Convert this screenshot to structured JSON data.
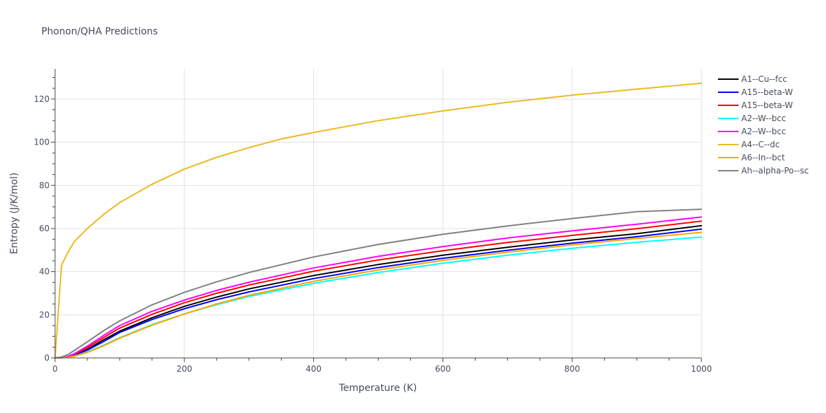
{
  "chart_data": {
    "type": "line",
    "title": "Phonon/QHA Predictions",
    "xlabel": "Temperature (K)",
    "ylabel": "Entropy (J/K/mol)",
    "xlim": [
      0,
      1000
    ],
    "ylim": [
      0,
      134
    ],
    "x_ticks": [
      0,
      200,
      400,
      600,
      800,
      1000
    ],
    "y_ticks": [
      0,
      20,
      40,
      60,
      80,
      100,
      120
    ],
    "grid": true,
    "legend_position": "right",
    "series": [
      {
        "name": "A1--Cu--fcc",
        "color": "#000000",
        "x": [
          0,
          10,
          20,
          30,
          50,
          75,
          100,
          150,
          200,
          250,
          300,
          400,
          500,
          600,
          700,
          800,
          900,
          1000
        ],
        "y": [
          0,
          0.1,
          0.5,
          1.4,
          4.0,
          8.4,
          12.4,
          18.6,
          23.9,
          28.2,
          32.0,
          38.2,
          43.3,
          47.6,
          51.3,
          54.7,
          57.6,
          61.3
        ]
      },
      {
        "name": "A15--beta-W",
        "color": "#0000ff",
        "x": [
          0,
          10,
          20,
          30,
          50,
          75,
          100,
          150,
          200,
          250,
          300,
          400,
          500,
          600,
          700,
          800,
          900,
          1000
        ],
        "y": [
          0,
          0.1,
          0.4,
          1.2,
          3.6,
          7.6,
          11.8,
          17.8,
          22.8,
          27.0,
          30.6,
          36.8,
          41.9,
          46.2,
          49.9,
          53.2,
          56.2,
          59.7
        ]
      },
      {
        "name": "A15--beta-W",
        "color": "#ff0000",
        "x": [
          0,
          10,
          20,
          30,
          50,
          75,
          100,
          150,
          200,
          250,
          300,
          400,
          500,
          600,
          700,
          800,
          900,
          1000
        ],
        "y": [
          0,
          0.1,
          0.6,
          1.7,
          4.8,
          9.4,
          13.8,
          20.2,
          25.6,
          30.0,
          33.8,
          40.2,
          45.4,
          49.7,
          53.5,
          56.8,
          59.9,
          63.4
        ]
      },
      {
        "name": "A2--W--bcc",
        "color": "#00ffff",
        "x": [
          0,
          10,
          20,
          30,
          50,
          75,
          100,
          150,
          200,
          250,
          300,
          400,
          500,
          600,
          700,
          800,
          900,
          1000
        ],
        "y": [
          0,
          0.1,
          0.3,
          0.9,
          2.8,
          5.9,
          9.4,
          15.4,
          20.4,
          24.7,
          28.5,
          34.6,
          39.6,
          43.9,
          47.6,
          50.8,
          53.6,
          56.0
        ]
      },
      {
        "name": "A2--W--bcc",
        "color": "#ff00ff",
        "x": [
          0,
          10,
          20,
          30,
          50,
          75,
          100,
          150,
          200,
          250,
          300,
          400,
          500,
          600,
          700,
          800,
          900,
          1000
        ],
        "y": [
          0,
          0.1,
          0.7,
          2.0,
          5.5,
          10.4,
          15.0,
          21.6,
          26.8,
          31.3,
          35.1,
          41.7,
          47.1,
          51.6,
          55.6,
          58.9,
          62.0,
          65.3
        ]
      },
      {
        "name": "A4--C--dc",
        "color": "#ecb920",
        "x": [
          0,
          10,
          20,
          30,
          50,
          75,
          100,
          150,
          200,
          250,
          300,
          350,
          400,
          500,
          600,
          700,
          800,
          900,
          1000
        ],
        "y": [
          0,
          43,
          49,
          54,
          60,
          66.5,
          72,
          80.5,
          87.5,
          93,
          97.5,
          101.5,
          104.5,
          110,
          114.5,
          118.5,
          121.8,
          124.6,
          127.3
        ]
      },
      {
        "name": "A6--In--bct",
        "color": "#ffa500",
        "x": [
          0,
          10,
          20,
          30,
          50,
          75,
          100,
          150,
          200,
          250,
          300,
          400,
          500,
          600,
          700,
          800,
          900,
          1000
        ],
        "y": [
          0,
          0.1,
          0.3,
          0.8,
          2.6,
          5.6,
          9.2,
          15.2,
          20.4,
          25.0,
          29.0,
          35.5,
          40.8,
          45.2,
          49.0,
          52.4,
          55.4,
          58.2
        ]
      },
      {
        "name": "Ah--alpha-Po--sc",
        "color": "#808080",
        "x": [
          0,
          10,
          20,
          30,
          50,
          75,
          100,
          150,
          200,
          250,
          300,
          400,
          500,
          600,
          700,
          800,
          900,
          1000
        ],
        "y": [
          0,
          0.4,
          1.6,
          3.5,
          7.5,
          12.6,
          17.2,
          24.6,
          30.4,
          35.3,
          39.6,
          46.8,
          52.6,
          57.3,
          61.2,
          64.6,
          67.8,
          68.9
        ]
      }
    ]
  }
}
